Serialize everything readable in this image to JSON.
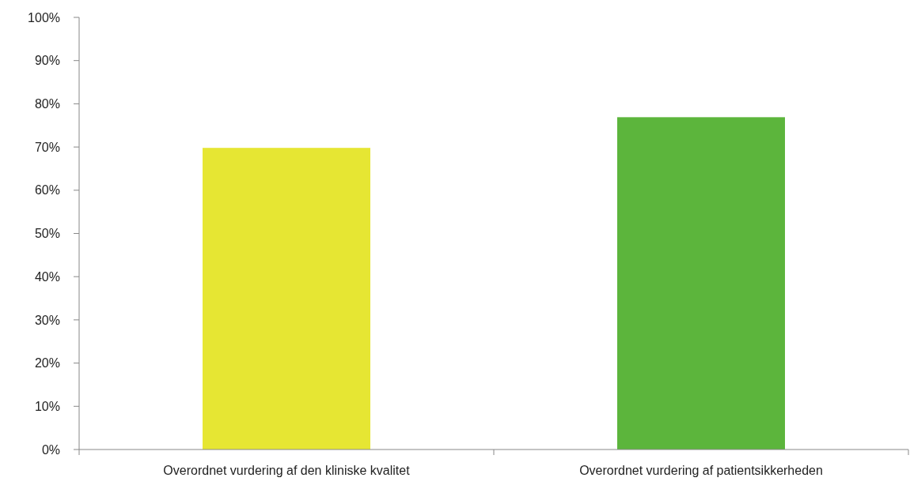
{
  "chart_data": {
    "type": "bar",
    "categories": [
      "Overordnet vurdering af den kliniske kvalitet",
      "Overordnet vurdering af patientsikkerheden"
    ],
    "values": [
      69.8,
      76.9
    ],
    "colors": [
      "#e6e633",
      "#5cb53c"
    ],
    "ylim": [
      0,
      100
    ],
    "yticks": [
      {
        "value": 0,
        "label": "0%"
      },
      {
        "value": 10,
        "label": "10%"
      },
      {
        "value": 20,
        "label": "20%"
      },
      {
        "value": 30,
        "label": "30%"
      },
      {
        "value": 40,
        "label": "40%"
      },
      {
        "value": 50,
        "label": "50%"
      },
      {
        "value": 60,
        "label": "60%"
      },
      {
        "value": 70,
        "label": "70%"
      },
      {
        "value": 80,
        "label": "80%"
      },
      {
        "value": 90,
        "label": "90%"
      },
      {
        "value": 100,
        "label": "100%"
      }
    ],
    "grid": false
  }
}
